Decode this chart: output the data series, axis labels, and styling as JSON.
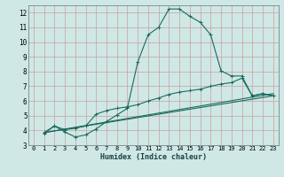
{
  "xlabel": "Humidex (Indice chaleur)",
  "ylabel": "",
  "background_color": "#cfe8e5",
  "grid_color": "#b8d4d0",
  "line_color": "#1a6b60",
  "axis_label_color": "#1a4040",
  "xlim": [
    -0.5,
    23.5
  ],
  "ylim": [
    3,
    12.5
  ],
  "yticks": [
    3,
    4,
    5,
    6,
    7,
    8,
    9,
    10,
    11,
    12
  ],
  "xticks": [
    0,
    1,
    2,
    3,
    4,
    5,
    6,
    7,
    8,
    9,
    10,
    11,
    12,
    13,
    14,
    15,
    16,
    17,
    18,
    19,
    20,
    21,
    22,
    23
  ],
  "series1_x": [
    1,
    2,
    3,
    4,
    5,
    6,
    7,
    8,
    9,
    10,
    11,
    12,
    13,
    14,
    15,
    16,
    17,
    18,
    19,
    20,
    21,
    22,
    23
  ],
  "series1_y": [
    3.8,
    4.3,
    3.9,
    3.55,
    3.7,
    4.1,
    4.6,
    5.05,
    5.5,
    8.65,
    10.5,
    11.0,
    12.25,
    12.25,
    11.75,
    11.35,
    10.5,
    8.05,
    7.7,
    7.7,
    6.35,
    6.5,
    6.35
  ],
  "series2_x": [
    1,
    2,
    3,
    4,
    5,
    6,
    7,
    8,
    9,
    10,
    11,
    12,
    13,
    14,
    15,
    16,
    17,
    18,
    19,
    20,
    21,
    22,
    23
  ],
  "series2_y": [
    3.85,
    4.3,
    4.05,
    4.15,
    4.3,
    5.1,
    5.35,
    5.5,
    5.6,
    5.75,
    6.0,
    6.2,
    6.45,
    6.6,
    6.7,
    6.8,
    7.0,
    7.15,
    7.25,
    7.55,
    6.35,
    6.5,
    6.35
  ],
  "series3_x": [
    1,
    23
  ],
  "series3_y": [
    3.85,
    6.35
  ],
  "series4_x": [
    1,
    23
  ],
  "series4_y": [
    3.85,
    6.5
  ]
}
